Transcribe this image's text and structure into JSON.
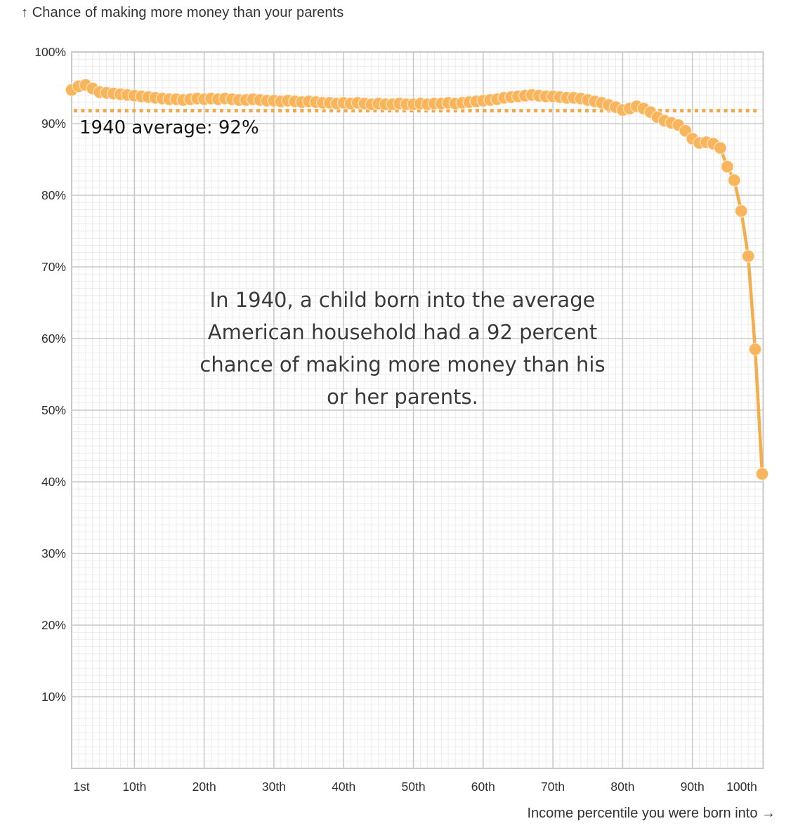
{
  "colors": {
    "series_dot": "#F8B55B",
    "series_line": "#F5AD4C",
    "average_line": "#F2A844",
    "grid_minor": "#ebebeb",
    "grid_major": "#c9c9c9",
    "title_text": "#333333",
    "tick_text": "#2e2e2e",
    "annotation_text": "#3a3a3a",
    "background": "#ffffff"
  },
  "chart_data": {
    "type": "line",
    "title": "↑ Chance of making more money than your parents",
    "xlabel": "Income percentile you were born into →",
    "ylabel": "Chance of making more money than your parents",
    "xlim": [
      1,
      100
    ],
    "ylim": [
      0,
      100
    ],
    "grid": {
      "minor_step_x": 1,
      "minor_step_y": 1,
      "major_step_x": 10,
      "major_step_y": 10
    },
    "x_ticks": [
      {
        "value": 1,
        "label": "1st"
      },
      {
        "value": 10,
        "label": "10th"
      },
      {
        "value": 20,
        "label": "20th"
      },
      {
        "value": 30,
        "label": "30th"
      },
      {
        "value": 40,
        "label": "40th"
      },
      {
        "value": 50,
        "label": "50th"
      },
      {
        "value": 60,
        "label": "60th"
      },
      {
        "value": 70,
        "label": "70th"
      },
      {
        "value": 80,
        "label": "80th"
      },
      {
        "value": 90,
        "label": "90th"
      },
      {
        "value": 100,
        "label": "100th"
      }
    ],
    "y_ticks": [
      {
        "value": 100,
        "label": "100%"
      },
      {
        "value": 90,
        "label": "90%"
      },
      {
        "value": 80,
        "label": "80%"
      },
      {
        "value": 70,
        "label": "70%"
      },
      {
        "value": 60,
        "label": "60%"
      },
      {
        "value": 50,
        "label": "50%"
      },
      {
        "value": 40,
        "label": "40%"
      },
      {
        "value": 30,
        "label": "30%"
      },
      {
        "value": 20,
        "label": "20%"
      },
      {
        "value": 10,
        "label": "10%"
      }
    ],
    "average_line": {
      "value": 91.8,
      "label": "1940 average: 92%",
      "style": "dotted"
    },
    "annotation": {
      "lines": [
        "In 1940, a child born into the average",
        "American household had a 92 percent",
        "chance of making more money than his",
        "or her parents."
      ]
    },
    "x": [
      1,
      2,
      3,
      4,
      5,
      6,
      7,
      8,
      9,
      10,
      11,
      12,
      13,
      14,
      15,
      16,
      17,
      18,
      19,
      20,
      21,
      22,
      23,
      24,
      25,
      26,
      27,
      28,
      29,
      30,
      31,
      32,
      33,
      34,
      35,
      36,
      37,
      38,
      39,
      40,
      41,
      42,
      43,
      44,
      45,
      46,
      47,
      48,
      49,
      50,
      51,
      52,
      53,
      54,
      55,
      56,
      57,
      58,
      59,
      60,
      61,
      62,
      63,
      64,
      65,
      66,
      67,
      68,
      69,
      70,
      71,
      72,
      73,
      74,
      75,
      76,
      77,
      78,
      79,
      80,
      81,
      82,
      83,
      84,
      85,
      86,
      87,
      88,
      89,
      90,
      91,
      92,
      93,
      94,
      95,
      96,
      97,
      98,
      99,
      100
    ],
    "values": [
      94.7,
      95.2,
      95.4,
      94.9,
      94.4,
      94.3,
      94.2,
      94.1,
      94.0,
      93.9,
      93.8,
      93.7,
      93.6,
      93.5,
      93.4,
      93.4,
      93.3,
      93.4,
      93.5,
      93.4,
      93.5,
      93.4,
      93.5,
      93.4,
      93.3,
      93.3,
      93.4,
      93.3,
      93.2,
      93.2,
      93.1,
      93.2,
      93.1,
      93.0,
      93.1,
      93.0,
      92.9,
      92.9,
      92.8,
      92.9,
      92.8,
      92.9,
      92.8,
      92.7,
      92.8,
      92.7,
      92.7,
      92.8,
      92.7,
      92.7,
      92.8,
      92.7,
      92.8,
      92.8,
      92.9,
      92.8,
      92.9,
      93.0,
      93.1,
      93.2,
      93.3,
      93.4,
      93.6,
      93.7,
      93.8,
      93.9,
      94.0,
      93.9,
      93.8,
      93.8,
      93.7,
      93.6,
      93.6,
      93.5,
      93.3,
      93.1,
      92.9,
      92.6,
      92.3,
      91.9,
      92.1,
      92.4,
      92.1,
      91.6,
      90.9,
      90.4,
      90.1,
      89.8,
      89.0,
      87.9,
      87.3,
      87.4,
      87.2,
      86.6,
      84.0,
      82.1,
      77.8,
      71.5,
      58.5,
      41.1
    ]
  }
}
